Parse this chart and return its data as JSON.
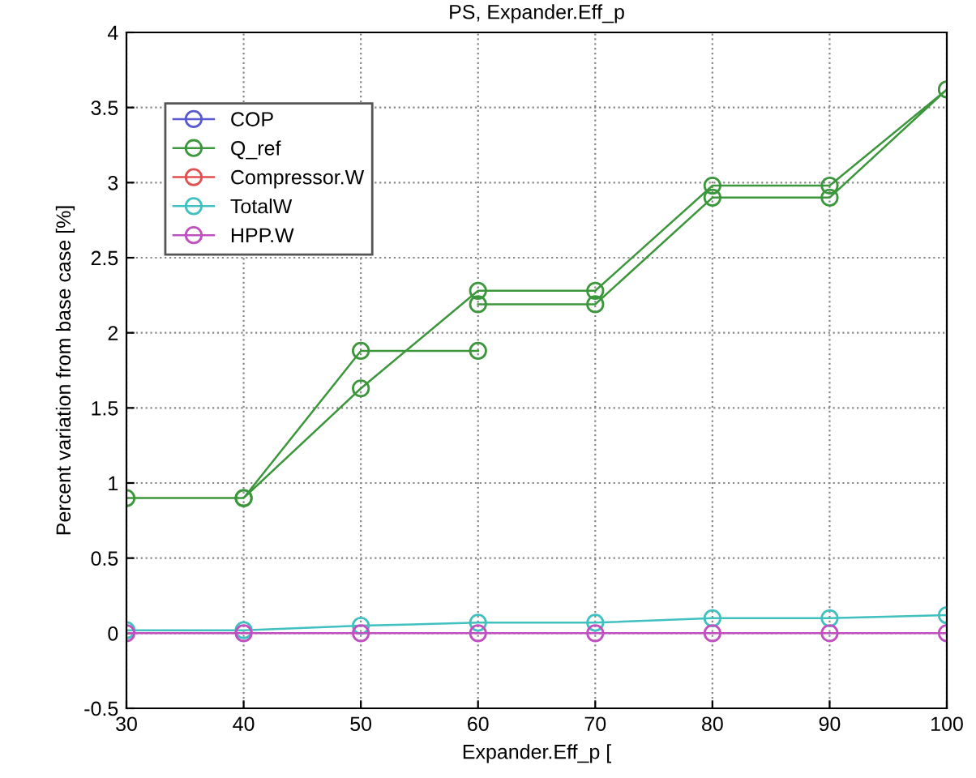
{
  "chart_data": {
    "type": "line",
    "title": "PS, Expander.Eff_p",
    "xlabel": "Expander.Eff_p [",
    "ylabel": "Percent variation from base case [%]",
    "x": [
      30,
      40,
      50,
      60,
      70,
      80,
      90,
      100
    ],
    "series": [
      {
        "name": "COP",
        "color": "#5a5ad0",
        "values": [
          null,
          null,
          null,
          null,
          null,
          null,
          null,
          null
        ]
      },
      {
        "name": "Q_ref",
        "color": "#3c963c",
        "x": [
          30,
          40,
          50,
          60,
          null,
          40,
          50,
          60,
          70,
          80,
          90,
          100,
          90,
          80,
          70,
          60
        ],
        "values": [
          0.9,
          0.9,
          1.88,
          1.88,
          null,
          0.9,
          1.63,
          2.28,
          2.28,
          2.98,
          2.98,
          3.62,
          2.9,
          2.9,
          2.19,
          2.19
        ]
      },
      {
        "name": "Compressor.W",
        "color": "#e05050",
        "values": [
          null,
          null,
          null,
          null,
          null,
          null,
          null,
          null
        ]
      },
      {
        "name": "TotalW",
        "color": "#40c0c0",
        "values": [
          0.02,
          0.02,
          0.05,
          0.07,
          0.07,
          0.1,
          0.1,
          0.12
        ]
      },
      {
        "name": "HPP.W",
        "color": "#c050c0",
        "values": [
          0,
          0,
          0,
          0,
          0,
          0,
          0,
          0
        ]
      }
    ],
    "xlim": [
      30,
      100
    ],
    "xticks": [
      30,
      40,
      50,
      60,
      70,
      80,
      90,
      100
    ],
    "ylim": [
      -0.5,
      4
    ],
    "yticks": [
      -0.5,
      0,
      0.5,
      1,
      1.5,
      2,
      2.5,
      3,
      3.5,
      4
    ],
    "grid": true,
    "legend": "top left",
    "marker": "circle",
    "line_style": "solid"
  }
}
